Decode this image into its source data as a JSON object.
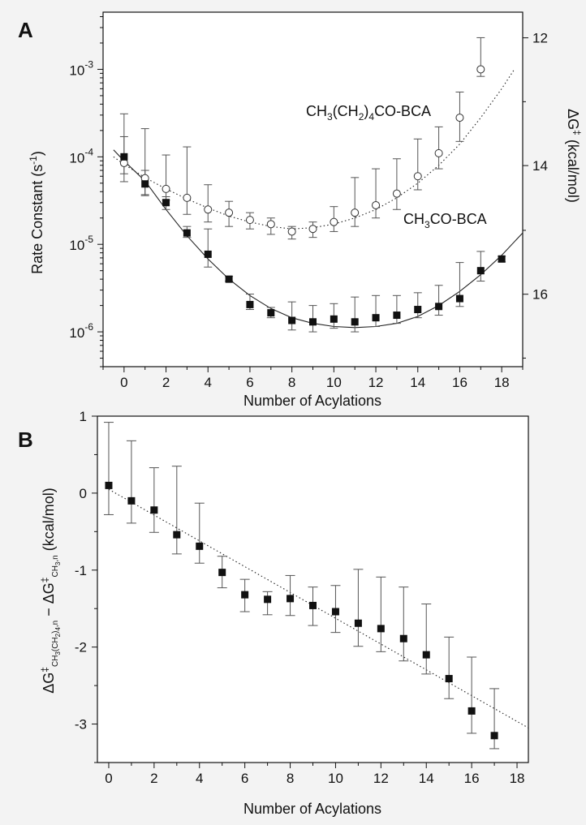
{
  "chart_data": [
    {
      "panel_label": "A",
      "type": "scatter",
      "xlabel": "Number of Acylations",
      "ylabel": "Rate Constant (s",
      "ylabel_sup": "-1",
      "ylabel_end": ")",
      "ylabel_right": "ΔG",
      "ylabel_right_sup": "‡",
      "ylabel_right_end": " (kcal/mol)",
      "yscale": "log",
      "xlim": [
        -1,
        19
      ],
      "ylim": [
        4e-07,
        0.0045
      ],
      "x_ticks": [
        0,
        2,
        4,
        6,
        8,
        10,
        12,
        14,
        16,
        18
      ],
      "y_ticks": [
        {
          "base": "10",
          "exp": "-6",
          "value": 1e-06
        },
        {
          "base": "10",
          "exp": "-5",
          "value": 1e-05
        },
        {
          "base": "10",
          "exp": "-4",
          "value": 0.0001
        },
        {
          "base": "10",
          "exp": "-3",
          "value": 0.001
        }
      ],
      "y2_ticks": [
        "12",
        "14",
        "16"
      ],
      "y2_tick_positions_log10": [
        -2.64,
        -4.1,
        -5.57
      ],
      "series": [
        {
          "name": "CH3(CH2)4CO-BCA",
          "label_parts": [
            "CH",
            "3",
            "(CH",
            "2",
            ")",
            "4",
            "CO-BCA"
          ],
          "marker": "open-circle",
          "fit": "dotted",
          "x": [
            0,
            1,
            2,
            3,
            4,
            5,
            6,
            7,
            8,
            9,
            10,
            11,
            12,
            13,
            14,
            15,
            16,
            17
          ],
          "y": [
            8.5e-05,
            5.7e-05,
            4.3e-05,
            3.4e-05,
            2.5e-05,
            2.3e-05,
            1.9e-05,
            1.7e-05,
            1.4e-05,
            1.5e-05,
            1.8e-05,
            2.3e-05,
            2.8e-05,
            3.8e-05,
            6e-05,
            0.00011,
            0.00028,
            0.001
          ],
          "err_upper": [
            0.00031,
            0.00021,
            0.000105,
            0.00013,
            4.8e-05,
            3.1e-05,
            2.3e-05,
            2e-05,
            1.6e-05,
            1.8e-05,
            2.7e-05,
            5.8e-05,
            7.3e-05,
            9.5e-05,
            0.00016,
            0.00022,
            0.00055,
            0.0023
          ],
          "err_lower": [
            5.2e-05,
            3.7e-05,
            3.2e-05,
            2.2e-05,
            1.8e-05,
            1.6e-05,
            1.5e-05,
            1.3e-05,
            1.15e-05,
            1.2e-05,
            1.4e-05,
            1.6e-05,
            2e-05,
            2.5e-05,
            4.2e-05,
            7.3e-05,
            0.00015,
            0.00083
          ],
          "fit_x": [
            -0.5,
            0,
            1,
            2,
            3,
            4,
            5,
            6,
            7,
            8,
            9,
            10,
            11,
            12,
            13,
            14,
            15,
            16,
            17,
            18,
            18.6
          ],
          "fit_y": [
            0.0001,
            8.2e-05,
            5.8e-05,
            4.3e-05,
            3.3e-05,
            2.6e-05,
            2.1e-05,
            1.8e-05,
            1.6e-05,
            1.5e-05,
            1.55e-05,
            1.7e-05,
            2e-05,
            2.5e-05,
            3.4e-05,
            5e-05,
            8e-05,
            0.00014,
            0.00028,
            0.0006,
            0.001
          ]
        },
        {
          "name": "CH3CO-BCA",
          "label_parts": [
            "CH",
            "3",
            "CO-BCA"
          ],
          "marker": "filled-square",
          "fit": "solid",
          "x": [
            0,
            1,
            2,
            3,
            4,
            5,
            6,
            7,
            8,
            9,
            10,
            11,
            12,
            13,
            14,
            15,
            16,
            17,
            18
          ],
          "y": [
            0.0001,
            4.9e-05,
            3e-05,
            1.35e-05,
            7.7e-06,
            4e-06,
            2.05e-06,
            1.65e-06,
            1.35e-06,
            1.3e-06,
            1.4e-06,
            1.3e-06,
            1.45e-06,
            1.55e-06,
            1.8e-06,
            1.95e-06,
            2.4e-06,
            5e-06,
            6.8e-06
          ],
          "err_upper": [
            0.00017,
            7e-05,
            3.5e-05,
            1.6e-05,
            1.5e-05,
            4.3e-06,
            2.7e-06,
            1.9e-06,
            2.2e-06,
            2e-06,
            2.1e-06,
            2.5e-06,
            2.6e-06,
            2.6e-06,
            2.8e-06,
            3.4e-06,
            6.2e-06,
            8.3e-06,
            7.3e-06
          ],
          "err_lower": [
            6.4e-05,
            3.6e-05,
            2.5e-05,
            1.2e-05,
            5.5e-06,
            3.8e-06,
            1.8e-06,
            1.45e-06,
            1.05e-06,
            1e-06,
            1.1e-06,
            1e-06,
            1.15e-06,
            1.25e-06,
            1.45e-06,
            1.55e-06,
            1.95e-06,
            3.8e-06,
            6.3e-06
          ],
          "fit_x": [
            -0.5,
            0,
            1,
            2,
            3,
            4,
            5,
            6,
            7,
            8,
            9,
            10,
            11,
            12,
            13,
            14,
            15,
            16,
            17,
            18,
            19
          ],
          "fit_y": [
            0.00012,
            9e-05,
            5.3e-05,
            2.5e-05,
            1.25e-05,
            6.8e-06,
            4e-06,
            2.6e-06,
            1.85e-06,
            1.45e-06,
            1.25e-06,
            1.15e-06,
            1.12e-06,
            1.15e-06,
            1.25e-06,
            1.5e-06,
            2e-06,
            2.9e-06,
            4.5e-06,
            7.5e-06,
            1.35e-05
          ]
        }
      ]
    },
    {
      "panel_label": "B",
      "type": "scatter",
      "xlabel": "Number of Acylations",
      "ylabel_tex": "ΔG‡CH3(CH2)4,n − ΔG‡CH3,n (kcal/mol)",
      "xlim": [
        -0.5,
        18.5
      ],
      "ylim": [
        -3.5,
        1.0
      ],
      "x_ticks": [
        0,
        2,
        4,
        6,
        8,
        10,
        12,
        14,
        16,
        18
      ],
      "y_ticks": [
        -3,
        -2,
        -1,
        0,
        1
      ],
      "fit_line": {
        "style": "dotted",
        "x": [
          0,
          18.5
        ],
        "y": [
          0.05,
          -3.05
        ]
      },
      "series": [
        {
          "marker": "filled-square",
          "x": [
            0,
            1,
            2,
            3,
            4,
            5,
            6,
            7,
            8,
            9,
            10,
            11,
            12,
            13,
            14,
            15,
            16,
            17
          ],
          "y": [
            0.1,
            -0.1,
            -0.22,
            -0.54,
            -0.69,
            -1.03,
            -1.32,
            -1.38,
            -1.37,
            -1.46,
            -1.54,
            -1.69,
            -1.76,
            -1.89,
            -2.1,
            -2.41,
            -2.83,
            -3.15
          ],
          "err_upper": [
            0.92,
            0.68,
            0.33,
            0.35,
            -0.13,
            -0.82,
            -1.12,
            -1.28,
            -1.07,
            -1.22,
            -1.2,
            -0.99,
            -1.09,
            -1.22,
            -1.44,
            -1.87,
            -2.13,
            -2.54
          ],
          "err_lower": [
            -0.28,
            -0.39,
            -0.51,
            -0.79,
            -0.91,
            -1.23,
            -1.54,
            -1.58,
            -1.59,
            -1.72,
            -1.81,
            -1.99,
            -2.06,
            -2.18,
            -2.35,
            -2.67,
            -3.12,
            -3.32
          ]
        }
      ]
    }
  ]
}
